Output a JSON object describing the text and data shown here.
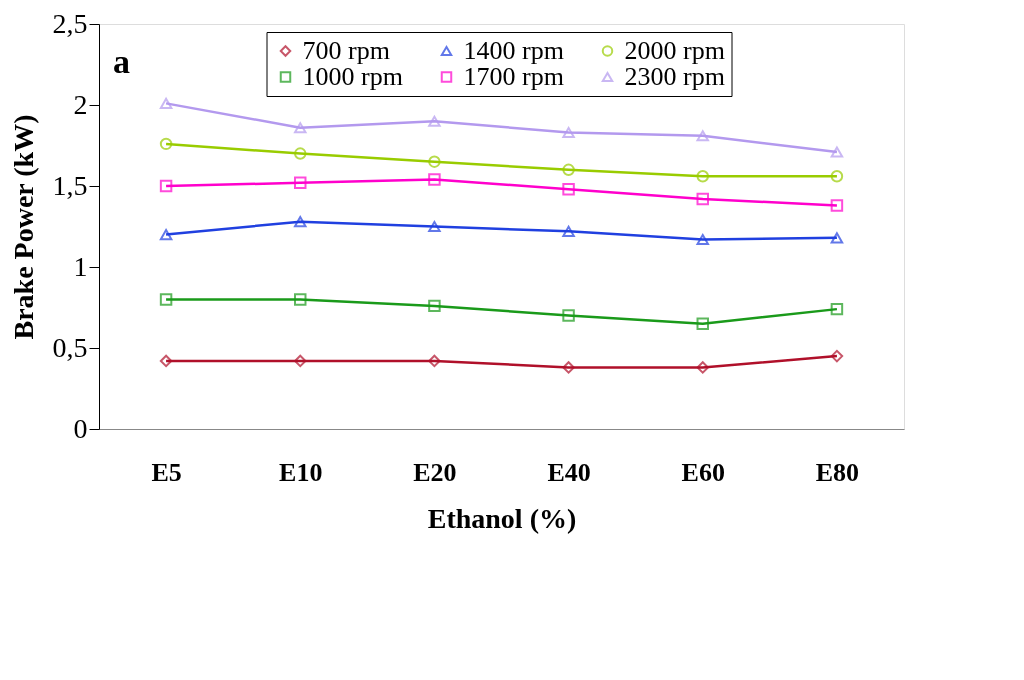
{
  "chart_data": {
    "type": "line",
    "xlabel": "Ethanol (%)",
    "ylabel": "Brake Power (kW)",
    "categories": [
      "E5",
      "E10",
      "E20",
      "E40",
      "E60",
      "E80"
    ],
    "series": [
      {
        "name": "700 rpm",
        "color": "#b0102a",
        "marker": "diamond",
        "values": [
          0.42,
          0.42,
          0.42,
          0.38,
          0.38,
          0.45
        ]
      },
      {
        "name": "1000 rpm",
        "color": "#1a9a1a",
        "marker": "square",
        "values": [
          0.8,
          0.8,
          0.76,
          0.7,
          0.65,
          0.74
        ]
      },
      {
        "name": "1400 rpm",
        "color": "#2040e0",
        "marker": "triangle",
        "values": [
          1.2,
          1.28,
          1.25,
          1.22,
          1.17,
          1.18
        ]
      },
      {
        "name": "1700 rpm",
        "color": "#ff00cc",
        "marker": "square",
        "values": [
          1.5,
          1.52,
          1.54,
          1.48,
          1.42,
          1.38
        ]
      },
      {
        "name": "2000 rpm",
        "color": "#99cc00",
        "marker": "circle",
        "values": [
          1.76,
          1.7,
          1.65,
          1.6,
          1.56,
          1.56
        ]
      },
      {
        "name": "2300 rpm",
        "color": "#b399ee",
        "marker": "triangle",
        "values": [
          2.01,
          1.86,
          1.9,
          1.83,
          1.81,
          1.71
        ]
      }
    ],
    "ylim": [
      0,
      2.5
    ],
    "yticks": [
      {
        "value": 0,
        "label": "0"
      },
      {
        "value": 0.5,
        "label": "0,5"
      },
      {
        "value": 1,
        "label": "1"
      },
      {
        "value": 1.5,
        "label": "1,5"
      },
      {
        "value": 2,
        "label": "2"
      },
      {
        "value": 2.5,
        "label": "2,5"
      }
    ],
    "grid": false,
    "legend": "top",
    "line_style": "solid",
    "annotations": [
      "a"
    ]
  }
}
